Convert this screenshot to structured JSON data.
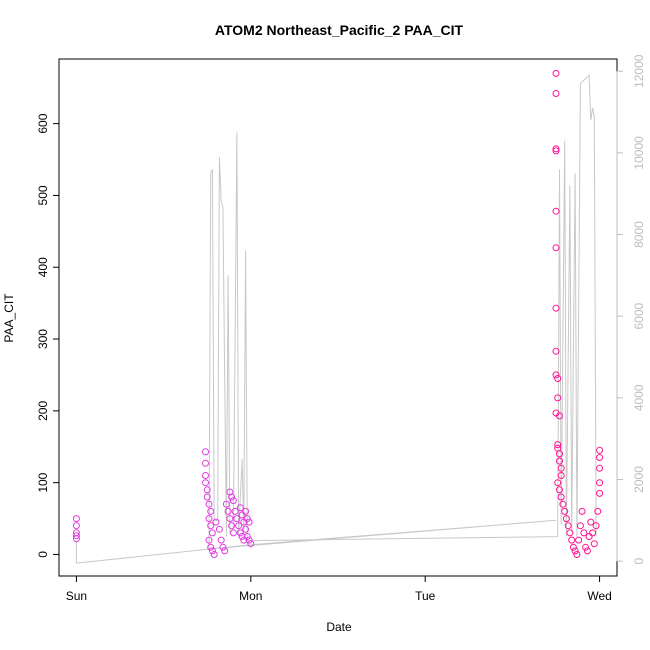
{
  "chart_data": {
    "type": "scatter",
    "title": "ATOM2 Northeast_Pacific_2 PAA_CIT",
    "xlabel": "Date",
    "ylabel": "PAA_CIT",
    "x_ticks": [
      {
        "label": "Sun",
        "value": 0
      },
      {
        "label": "Mon",
        "value": 1
      },
      {
        "label": "Tue",
        "value": 2
      },
      {
        "label": "Wed",
        "value": 3
      }
    ],
    "xlim": [
      -0.1,
      3.1
    ],
    "ylim": [
      -30,
      690
    ],
    "y_ticks": [
      0,
      100,
      200,
      300,
      400,
      500,
      600
    ],
    "y2lim": [
      -365,
      12300
    ],
    "y2_ticks": [
      0,
      2000,
      4000,
      6000,
      8000,
      10000,
      12000
    ],
    "colors": {
      "points_primary": "#ff1493",
      "points_secondary": "#e23be2",
      "line": "#c8c8c8",
      "axis": "#000000",
      "axis_right": "#bdbdbd"
    },
    "series": [
      {
        "kind": "points",
        "axis": "left",
        "points": [
          [
            0.0,
            22
          ],
          [
            0.0,
            26
          ],
          [
            0.0,
            30
          ],
          [
            0.0,
            40
          ],
          [
            0.0,
            50
          ],
          [
            0.74,
            143
          ],
          [
            0.74,
            127
          ],
          [
            0.74,
            110
          ],
          [
            0.74,
            100
          ],
          [
            0.75,
            90
          ],
          [
            0.75,
            80
          ],
          [
            0.76,
            70
          ],
          [
            0.77,
            60
          ],
          [
            0.76,
            50
          ],
          [
            0.77,
            40
          ],
          [
            0.78,
            30
          ],
          [
            0.76,
            20
          ],
          [
            0.77,
            10
          ],
          [
            0.78,
            5
          ],
          [
            0.79,
            0
          ],
          [
            0.8,
            45
          ],
          [
            0.82,
            35
          ],
          [
            0.83,
            20
          ],
          [
            0.84,
            10
          ],
          [
            0.85,
            5
          ],
          [
            0.86,
            70
          ],
          [
            0.87,
            60
          ],
          [
            0.88,
            50
          ],
          [
            0.89,
            40
          ],
          [
            0.9,
            30
          ],
          [
            0.88,
            87
          ],
          [
            0.89,
            80
          ],
          [
            0.9,
            75
          ],
          [
            0.91,
            60
          ],
          [
            0.92,
            50
          ],
          [
            0.93,
            40
          ],
          [
            0.94,
            30
          ],
          [
            0.95,
            25
          ],
          [
            0.96,
            20
          ],
          [
            0.94,
            65
          ],
          [
            0.95,
            55
          ],
          [
            0.96,
            45
          ],
          [
            0.97,
            35
          ],
          [
            0.98,
            25
          ],
          [
            0.99,
            20
          ],
          [
            1.0,
            15
          ],
          [
            0.97,
            60
          ],
          [
            0.98,
            50
          ],
          [
            0.99,
            45
          ],
          [
            2.75,
            670
          ],
          [
            2.75,
            642
          ],
          [
            2.75,
            565
          ],
          [
            2.75,
            562
          ],
          [
            2.75,
            478
          ],
          [
            2.75,
            427
          ],
          [
            2.75,
            343
          ],
          [
            2.75,
            283
          ],
          [
            2.75,
            250
          ],
          [
            2.76,
            245
          ],
          [
            2.76,
            218
          ],
          [
            2.75,
            197
          ],
          [
            2.77,
            193
          ],
          [
            2.76,
            153
          ],
          [
            2.76,
            148
          ],
          [
            2.77,
            140
          ],
          [
            2.77,
            130
          ],
          [
            2.78,
            120
          ],
          [
            2.78,
            110
          ],
          [
            2.76,
            100
          ],
          [
            2.77,
            90
          ],
          [
            2.78,
            80
          ],
          [
            2.79,
            70
          ],
          [
            2.8,
            60
          ],
          [
            2.81,
            50
          ],
          [
            2.82,
            40
          ],
          [
            2.83,
            30
          ],
          [
            2.84,
            20
          ],
          [
            2.85,
            10
          ],
          [
            2.86,
            5
          ],
          [
            2.87,
            0
          ],
          [
            2.88,
            20
          ],
          [
            2.89,
            40
          ],
          [
            2.9,
            60
          ],
          [
            2.91,
            30
          ],
          [
            2.92,
            10
          ],
          [
            2.93,
            5
          ],
          [
            2.94,
            25
          ],
          [
            2.95,
            45
          ],
          [
            2.96,
            30
          ],
          [
            2.97,
            15
          ],
          [
            2.98,
            40
          ],
          [
            2.99,
            60
          ],
          [
            3.0,
            85
          ],
          [
            3.0,
            100
          ],
          [
            3.0,
            120
          ],
          [
            3.0,
            135
          ],
          [
            3.0,
            145
          ]
        ]
      },
      {
        "kind": "line",
        "axis": "right",
        "points": [
          [
            0.0,
            500
          ],
          [
            0.0,
            -50
          ],
          [
            1.0,
            400
          ],
          [
            2.75,
            1000
          ],
          [
            0.76,
            300
          ],
          [
            0.77,
            9500
          ],
          [
            0.78,
            9600
          ],
          [
            0.79,
            1000
          ],
          [
            0.81,
            1000
          ],
          [
            0.82,
            9900
          ],
          [
            0.83,
            8800
          ],
          [
            0.84,
            8700
          ],
          [
            0.86,
            600
          ],
          [
            0.87,
            7000
          ],
          [
            0.88,
            700
          ],
          [
            0.9,
            800
          ],
          [
            0.92,
            10500
          ],
          [
            0.93,
            600
          ],
          [
            0.95,
            2500
          ],
          [
            0.96,
            700
          ],
          [
            0.97,
            7600
          ],
          [
            0.98,
            500
          ],
          [
            2.76,
            600
          ],
          [
            2.77,
            9600
          ],
          [
            2.78,
            900
          ],
          [
            2.8,
            10300
          ],
          [
            2.81,
            600
          ],
          [
            2.83,
            9200
          ],
          [
            2.84,
            700
          ],
          [
            2.86,
            9500
          ],
          [
            2.87,
            600
          ],
          [
            2.89,
            11700
          ],
          [
            2.94,
            11900
          ],
          [
            2.95,
            10800
          ],
          [
            2.96,
            11100
          ],
          [
            2.97,
            10900
          ],
          [
            2.98,
            600
          ]
        ]
      }
    ]
  }
}
